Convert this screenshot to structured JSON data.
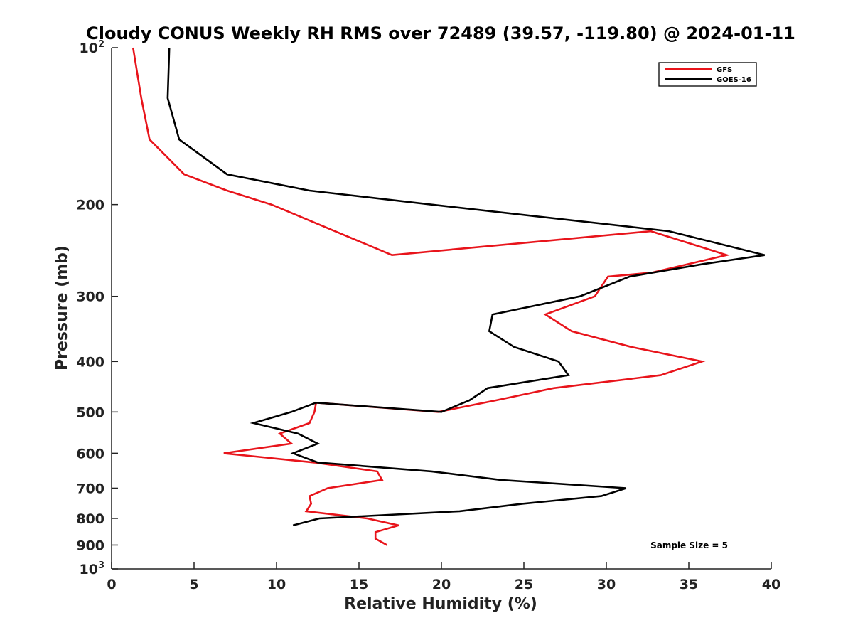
{
  "chart_data": {
    "type": "line",
    "title": "Cloudy CONUS Weekly RH RMS over 72489 (39.57, -119.80) @ 2024-01-11",
    "xlabel": "Relative Humidity (%)",
    "ylabel": "Pressure (mb)",
    "xlim": [
      0,
      40
    ],
    "ylim": [
      100,
      1000
    ],
    "y_scale": "log",
    "y_reversed": true,
    "grid": false,
    "legend_position": "top-right",
    "x_ticks": [
      {
        "value": 0,
        "label": "0"
      },
      {
        "value": 5,
        "label": "5"
      },
      {
        "value": 10,
        "label": "10"
      },
      {
        "value": 15,
        "label": "15"
      },
      {
        "value": 20,
        "label": "20"
      },
      {
        "value": 25,
        "label": "25"
      },
      {
        "value": 30,
        "label": "30"
      },
      {
        "value": 35,
        "label": "35"
      },
      {
        "value": 40,
        "label": "40"
      }
    ],
    "y_ticks": [
      {
        "value": 100,
        "label": "10",
        "sup": "2"
      },
      {
        "value": 200,
        "label": "200",
        "sup": ""
      },
      {
        "value": 300,
        "label": "300",
        "sup": ""
      },
      {
        "value": 400,
        "label": "400",
        "sup": ""
      },
      {
        "value": 500,
        "label": "500",
        "sup": ""
      },
      {
        "value": 600,
        "label": "600",
        "sup": ""
      },
      {
        "value": 700,
        "label": "700",
        "sup": ""
      },
      {
        "value": 800,
        "label": "800",
        "sup": ""
      },
      {
        "value": 900,
        "label": "900",
        "sup": ""
      },
      {
        "value": 1000,
        "label": "10",
        "sup": "3"
      }
    ],
    "series": [
      {
        "name": "GFS",
        "color": "#e8141b",
        "points": [
          [
            1.3,
            100
          ],
          [
            1.8,
            125
          ],
          [
            2.3,
            150
          ],
          [
            4.4,
            175
          ],
          [
            7.0,
            188
          ],
          [
            9.7,
            200
          ],
          [
            17.0,
            250
          ],
          [
            32.7,
            225
          ],
          [
            37.3,
            250
          ],
          [
            32.8,
            270
          ],
          [
            30.1,
            275
          ],
          [
            29.3,
            300
          ],
          [
            26.3,
            325
          ],
          [
            27.9,
            350
          ],
          [
            31.5,
            375
          ],
          [
            35.8,
            400
          ],
          [
            33.3,
            425
          ],
          [
            26.8,
            450
          ],
          [
            23.3,
            475
          ],
          [
            19.8,
            500
          ],
          [
            12.4,
            480
          ],
          [
            12.3,
            500
          ],
          [
            12.0,
            525
          ],
          [
            10.2,
            550
          ],
          [
            10.9,
            575
          ],
          [
            6.8,
            600
          ],
          [
            12.3,
            625
          ],
          [
            16.1,
            650
          ],
          [
            16.4,
            675
          ],
          [
            13.1,
            700
          ],
          [
            12.0,
            725
          ],
          [
            12.1,
            750
          ],
          [
            11.8,
            775
          ],
          [
            15.5,
            800
          ],
          [
            17.4,
            825
          ],
          [
            16.0,
            850
          ],
          [
            16.0,
            875
          ],
          [
            16.7,
            900
          ]
        ]
      },
      {
        "name": "GOES-16",
        "color": "#000000",
        "points": [
          [
            3.5,
            100
          ],
          [
            3.4,
            125
          ],
          [
            4.1,
            150
          ],
          [
            7.0,
            175
          ],
          [
            12.0,
            188
          ],
          [
            19.4,
            200
          ],
          [
            33.8,
            225
          ],
          [
            39.6,
            250
          ],
          [
            35.9,
            260
          ],
          [
            31.4,
            275
          ],
          [
            28.4,
            300
          ],
          [
            23.1,
            325
          ],
          [
            22.9,
            350
          ],
          [
            24.4,
            375
          ],
          [
            27.1,
            400
          ],
          [
            27.7,
            425
          ],
          [
            22.8,
            450
          ],
          [
            21.7,
            475
          ],
          [
            20.0,
            500
          ],
          [
            12.4,
            480
          ],
          [
            10.9,
            500
          ],
          [
            8.6,
            525
          ],
          [
            11.3,
            550
          ],
          [
            12.5,
            575
          ],
          [
            11.0,
            600
          ],
          [
            12.5,
            625
          ],
          [
            19.4,
            650
          ],
          [
            23.6,
            675
          ],
          [
            31.2,
            700
          ],
          [
            29.7,
            725
          ],
          [
            24.9,
            750
          ],
          [
            21.1,
            775
          ],
          [
            12.6,
            800
          ],
          [
            11.0,
            825
          ]
        ]
      }
    ],
    "annotations": [
      {
        "text": "Sample Size = 5",
        "position": "bottom-right"
      }
    ]
  }
}
